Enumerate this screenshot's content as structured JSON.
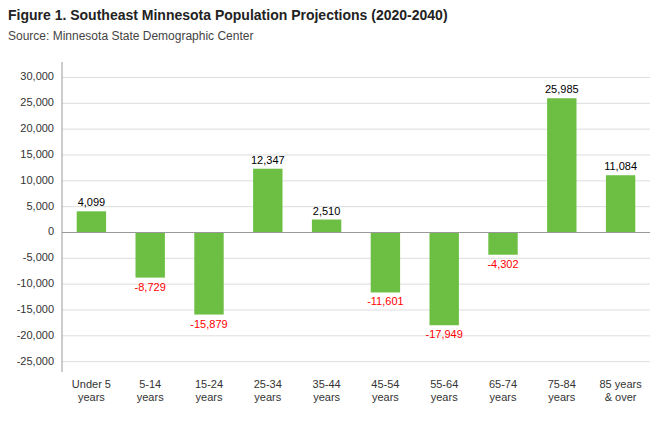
{
  "chart_data": {
    "type": "bar",
    "title": "Figure 1. Southeast Minnesota Population Projections (2020-2040)",
    "subtitle": "Source: Minnesota State Demographic Center",
    "categories": [
      "Under 5\nyears",
      "5-14\nyears",
      "15-24\nyears",
      "25-34\nyears",
      "35-44\nyears",
      "45-54\nyears",
      "55-64\nyears",
      "65-74\nyears",
      "75-84\nyears",
      "85 years\n& over"
    ],
    "values": [
      4099,
      -8729,
      -15879,
      12347,
      2510,
      -11601,
      -17949,
      -4302,
      25985,
      11084
    ],
    "value_labels": [
      "4,099",
      "-8,729",
      "-15,879",
      "12,347",
      "2,510",
      "-11,601",
      "-17,949",
      "-4,302",
      "25,985",
      "11,084"
    ],
    "color": "#6DBF44",
    "ylim": [
      -27000,
      33000
    ],
    "yticks": [
      {
        "value": -25000,
        "label": "-25,000"
      },
      {
        "value": -20000,
        "label": "-20,000"
      },
      {
        "value": -15000,
        "label": "-15,000"
      },
      {
        "value": -10000,
        "label": "-10,000"
      },
      {
        "value": -5000,
        "label": "-5,000"
      },
      0,
      {
        "value": 5000,
        "label": "5,000"
      },
      {
        "value": 10000,
        "label": "10,000"
      },
      {
        "value": 15000,
        "label": "15,000"
      },
      {
        "value": 20000,
        "label": "20,000"
      },
      {
        "value": 25000,
        "label": "25,000"
      },
      {
        "value": 30000,
        "label": "30,000"
      }
    ],
    "grid": true,
    "data_labels": true
  }
}
